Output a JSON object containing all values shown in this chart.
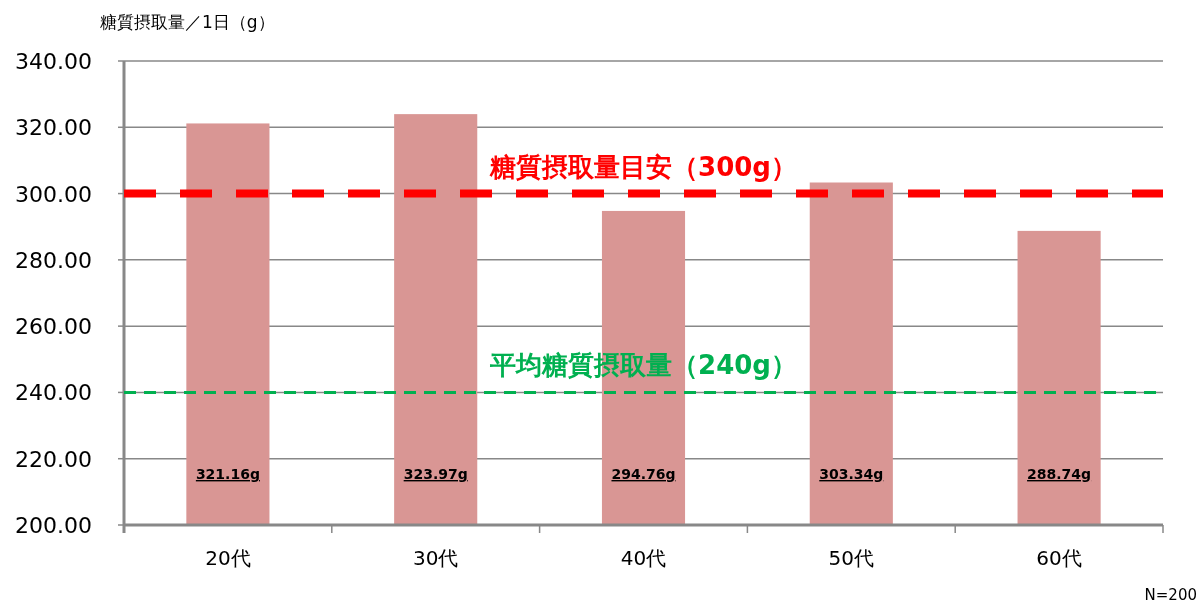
{
  "chart_data": {
    "type": "bar",
    "ylabel": "糖質摂取量／1日（g）",
    "categories": [
      "20代",
      "30代",
      "40代",
      "50代",
      "60代"
    ],
    "values": [
      321.16,
      323.97,
      294.76,
      303.34,
      288.74
    ],
    "value_labels": [
      "321.16g",
      "323.97g",
      "294.76g",
      "303.34g",
      "288.74g"
    ],
    "color": "#d99694",
    "ylim": [
      200,
      340
    ],
    "yticks": [
      {
        "value": 200,
        "label": "200.00"
      },
      {
        "value": 220,
        "label": "220.00"
      },
      {
        "value": 240,
        "label": "240.00"
      },
      {
        "value": 260,
        "label": "260.00"
      },
      {
        "value": 280,
        "label": "280.00"
      },
      {
        "value": 300,
        "label": "300.00"
      },
      {
        "value": 320,
        "label": "320.00"
      },
      {
        "value": 340,
        "label": "340.00"
      }
    ],
    "grid": "y",
    "ref_lines": [
      {
        "axis": "y",
        "value": 300,
        "label": "糖質摂取量目安（300g）",
        "color": "#ff0000",
        "line_style": "dashed"
      },
      {
        "axis": "y",
        "value": 240,
        "label": "平均糖質摂取量（240g）",
        "color": "#00b050",
        "line_style": "dashed"
      }
    ],
    "annotations": [
      "N=200"
    ]
  }
}
